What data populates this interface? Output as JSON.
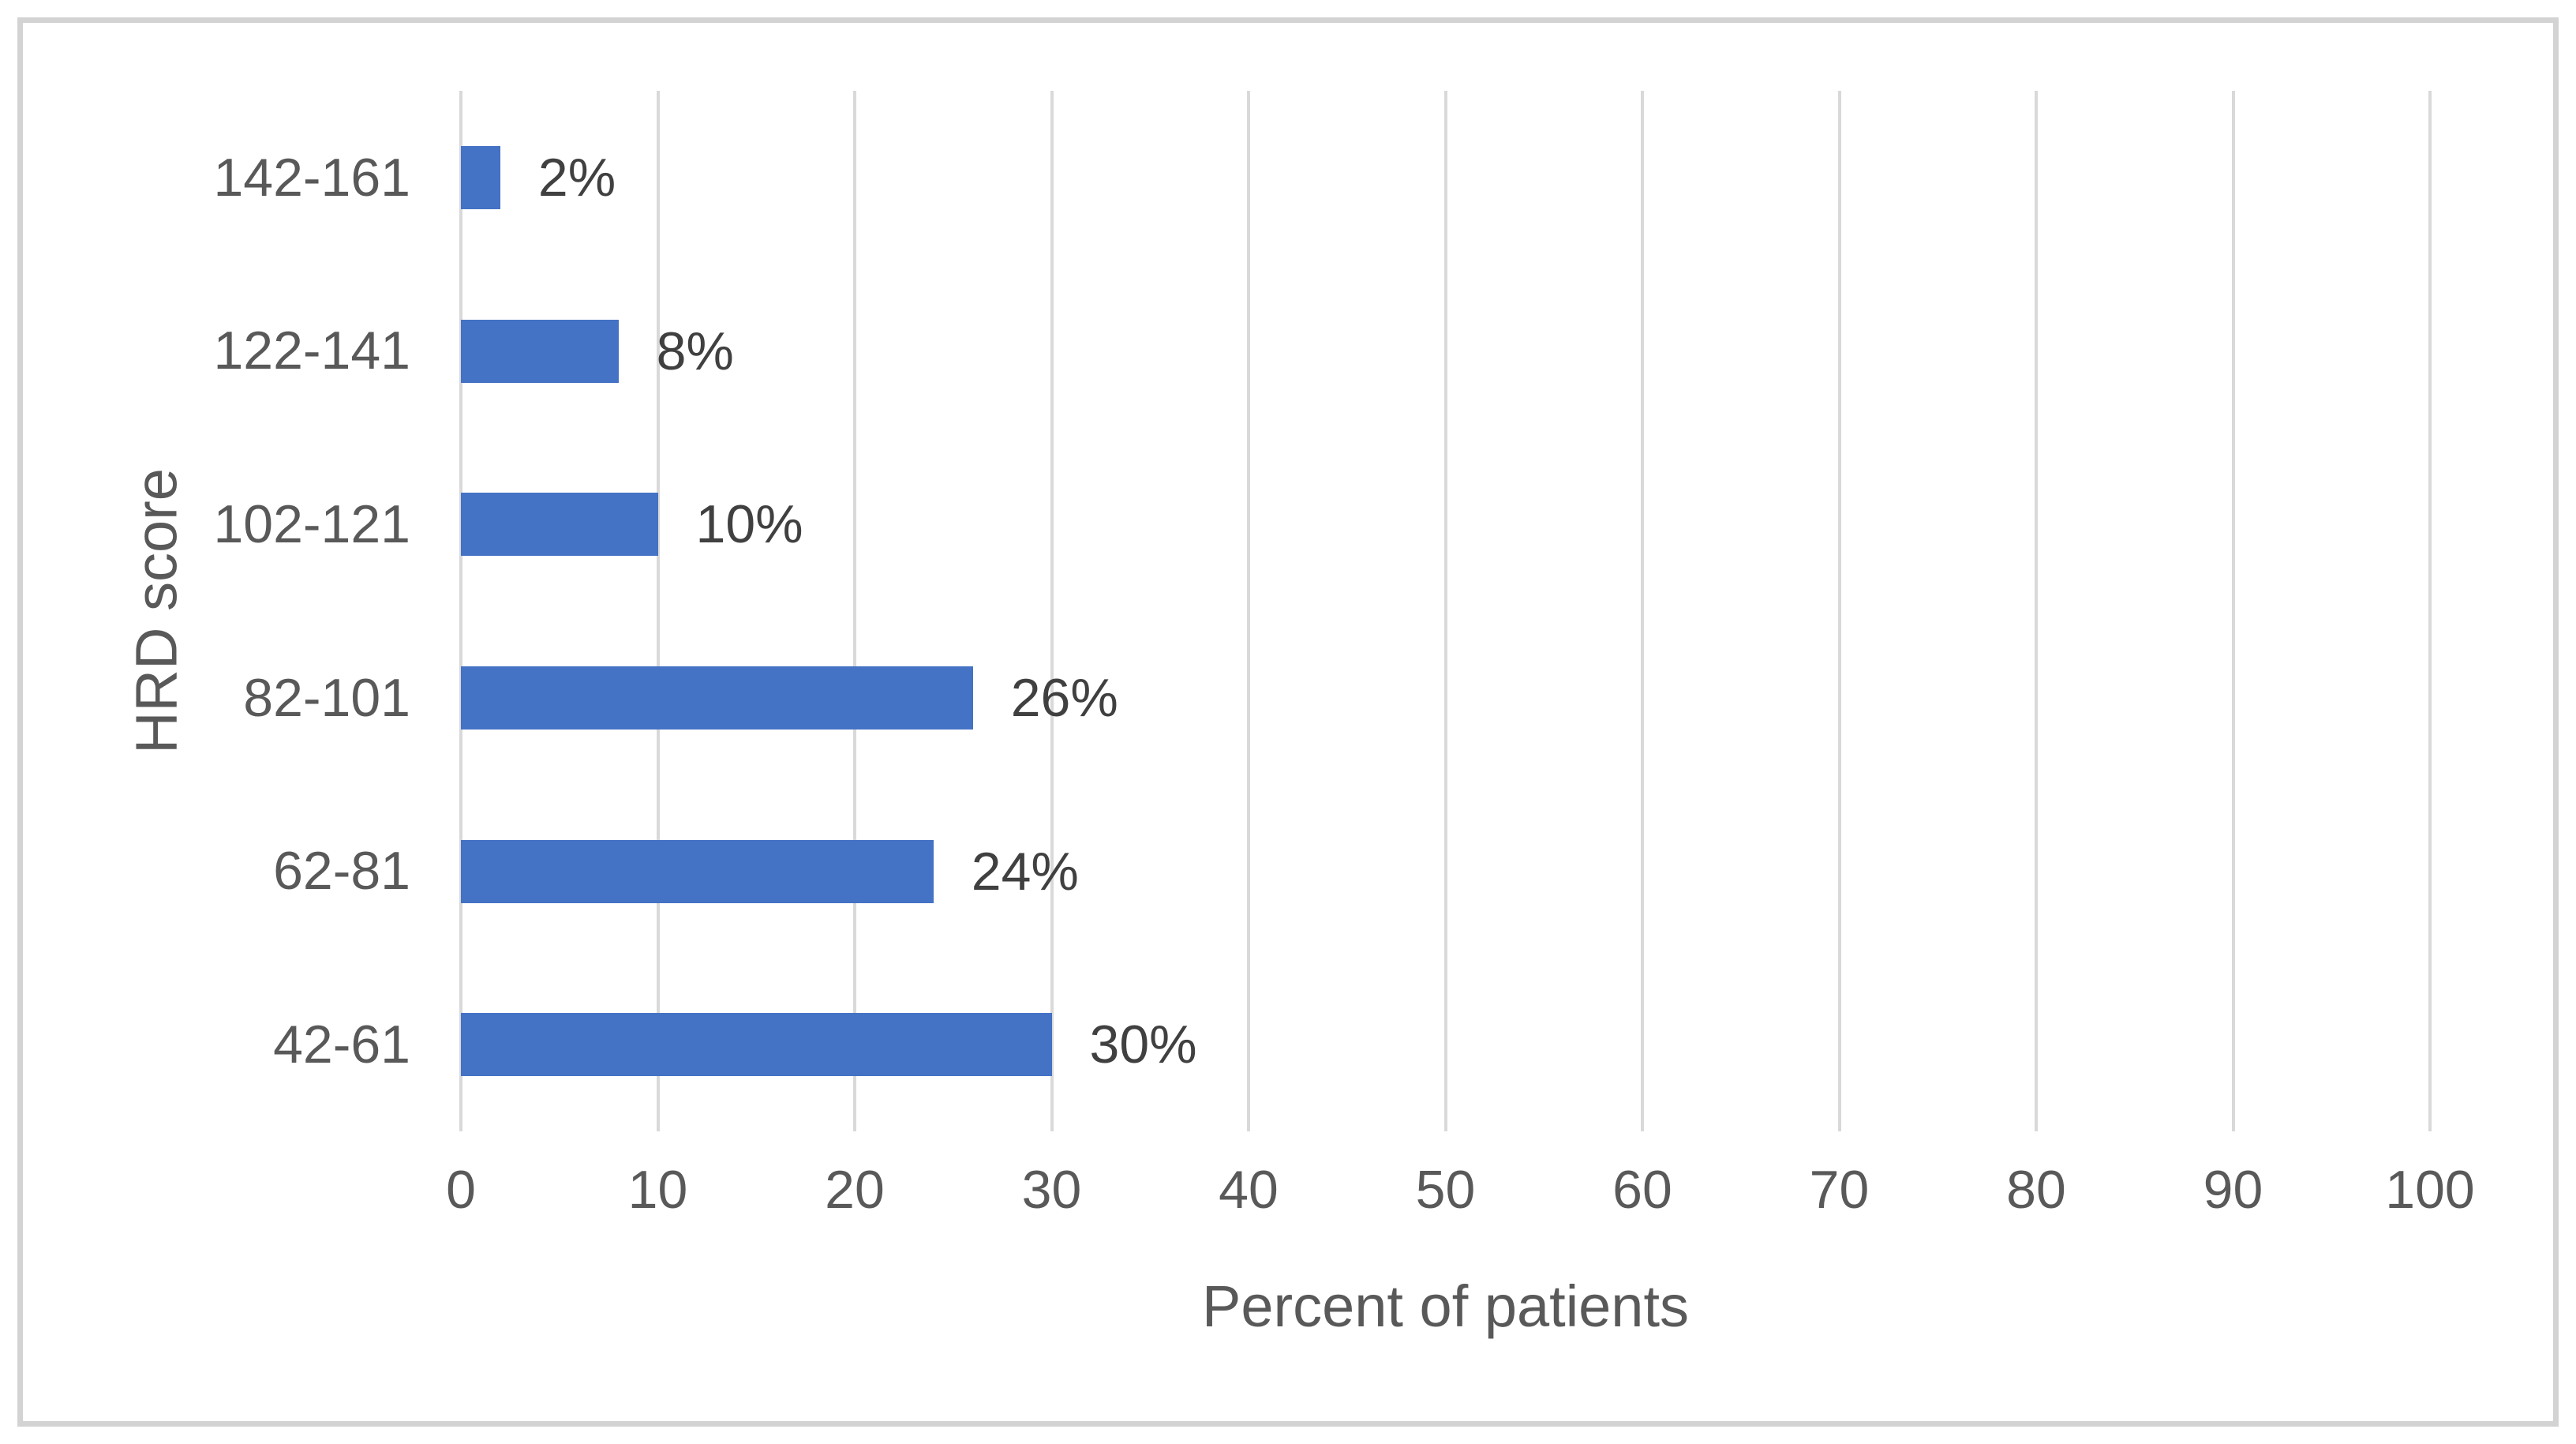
{
  "chart_data": {
    "type": "bar",
    "orientation": "horizontal",
    "categories": [
      "142-161",
      "122-141",
      "102-121",
      "82-101",
      "62-81",
      "42-61"
    ],
    "values": [
      2,
      8,
      10,
      26,
      24,
      30
    ],
    "data_labels": [
      "2%",
      "8%",
      "10%",
      "26%",
      "24%",
      "30%"
    ],
    "xlabel": "Percent of patients",
    "ylabel": "HRD score",
    "xlim": [
      0,
      100
    ],
    "xticks": [
      "0",
      "10",
      "20",
      "30",
      "40",
      "50",
      "60",
      "70",
      "80",
      "90",
      "100"
    ],
    "grid": "vertical-major",
    "legend": "none",
    "colors": {
      "bar": "#4472C4",
      "gridline": "#D9D9D9",
      "axis_text": "#595959",
      "data_label_text": "#404040",
      "frame_border": "#D3D3D3",
      "background": "#FFFFFF"
    }
  }
}
